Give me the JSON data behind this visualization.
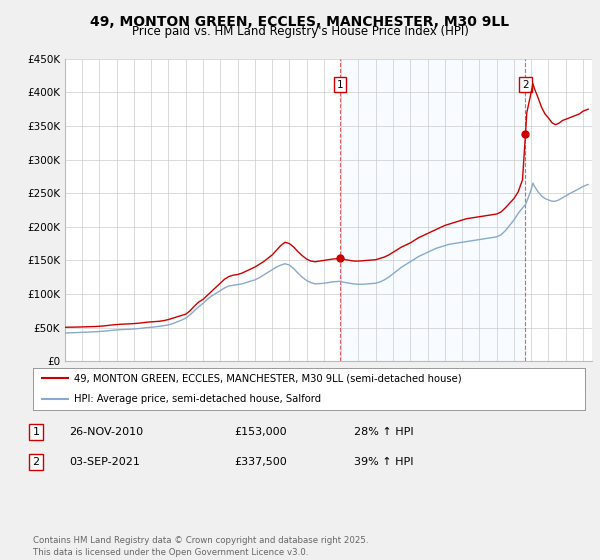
{
  "title": "49, MONTON GREEN, ECCLES, MANCHESTER, M30 9LL",
  "subtitle": "Price paid vs. HM Land Registry's House Price Index (HPI)",
  "title_fontsize": 10,
  "subtitle_fontsize": 8.5,
  "background_color": "#f0f0f0",
  "plot_bg_color": "#ffffff",
  "red_line_color": "#cc0000",
  "blue_line_color": "#88aacc",
  "ylim": [
    0,
    450000
  ],
  "yticks": [
    0,
    50000,
    100000,
    150000,
    200000,
    250000,
    300000,
    350000,
    400000,
    450000
  ],
  "ytick_labels": [
    "£0",
    "£50K",
    "£100K",
    "£150K",
    "£200K",
    "£250K",
    "£300K",
    "£350K",
    "£400K",
    "£450K"
  ],
  "xlim_start": 1995.0,
  "xlim_end": 2025.5,
  "marker1_x": 2010.92,
  "marker1_y": 153000,
  "marker2_x": 2021.67,
  "marker2_y": 337500,
  "legend_label_red": "49, MONTON GREEN, ECCLES, MANCHESTER, M30 9LL (semi-detached house)",
  "legend_label_blue": "HPI: Average price, semi-detached house, Salford",
  "table_row1": [
    "1",
    "26-NOV-2010",
    "£153,000",
    "28% ↑ HPI"
  ],
  "table_row2": [
    "2",
    "03-SEP-2021",
    "£337,500",
    "39% ↑ HPI"
  ],
  "footer_text": "Contains HM Land Registry data © Crown copyright and database right 2025.\nThis data is licensed under the Open Government Licence v3.0.",
  "hpi_red": [
    [
      1995.0,
      50500
    ],
    [
      1995.25,
      50600
    ],
    [
      1995.5,
      50700
    ],
    [
      1995.75,
      50800
    ],
    [
      1996.0,
      51000
    ],
    [
      1996.25,
      51200
    ],
    [
      1996.5,
      51400
    ],
    [
      1996.75,
      51600
    ],
    [
      1997.0,
      52000
    ],
    [
      1997.25,
      52500
    ],
    [
      1997.5,
      53200
    ],
    [
      1997.75,
      54000
    ],
    [
      1998.0,
      54500
    ],
    [
      1998.25,
      55000
    ],
    [
      1998.5,
      55300
    ],
    [
      1998.75,
      55600
    ],
    [
      1999.0,
      56000
    ],
    [
      1999.25,
      56500
    ],
    [
      1999.5,
      57200
    ],
    [
      1999.75,
      58000
    ],
    [
      2000.0,
      58500
    ],
    [
      2000.25,
      59000
    ],
    [
      2000.5,
      59500
    ],
    [
      2000.75,
      60500
    ],
    [
      2001.0,
      62000
    ],
    [
      2001.25,
      64000
    ],
    [
      2001.5,
      66000
    ],
    [
      2001.75,
      68000
    ],
    [
      2002.0,
      70000
    ],
    [
      2002.25,
      75000
    ],
    [
      2002.5,
      82000
    ],
    [
      2002.75,
      88000
    ],
    [
      2003.0,
      92000
    ],
    [
      2003.25,
      98000
    ],
    [
      2003.5,
      104000
    ],
    [
      2003.75,
      110000
    ],
    [
      2004.0,
      116000
    ],
    [
      2004.25,
      122000
    ],
    [
      2004.5,
      126000
    ],
    [
      2004.75,
      128000
    ],
    [
      2005.0,
      129000
    ],
    [
      2005.25,
      131000
    ],
    [
      2005.5,
      134000
    ],
    [
      2005.75,
      137000
    ],
    [
      2006.0,
      140000
    ],
    [
      2006.25,
      144000
    ],
    [
      2006.5,
      148000
    ],
    [
      2006.75,
      153000
    ],
    [
      2007.0,
      158000
    ],
    [
      2007.25,
      165000
    ],
    [
      2007.5,
      172000
    ],
    [
      2007.75,
      177000
    ],
    [
      2008.0,
      175000
    ],
    [
      2008.25,
      170000
    ],
    [
      2008.5,
      163000
    ],
    [
      2008.75,
      157000
    ],
    [
      2009.0,
      152000
    ],
    [
      2009.25,
      149000
    ],
    [
      2009.5,
      148000
    ],
    [
      2009.75,
      149000
    ],
    [
      2010.0,
      150000
    ],
    [
      2010.25,
      151000
    ],
    [
      2010.5,
      152000
    ],
    [
      2010.75,
      152500
    ],
    [
      2010.92,
      153000
    ],
    [
      2011.0,
      152500
    ],
    [
      2011.25,
      151000
    ],
    [
      2011.5,
      150000
    ],
    [
      2011.75,
      149000
    ],
    [
      2012.0,
      149000
    ],
    [
      2012.25,
      149500
    ],
    [
      2012.5,
      150000
    ],
    [
      2012.75,
      150500
    ],
    [
      2013.0,
      151000
    ],
    [
      2013.25,
      153000
    ],
    [
      2013.5,
      155000
    ],
    [
      2013.75,
      158000
    ],
    [
      2014.0,
      162000
    ],
    [
      2014.25,
      166000
    ],
    [
      2014.5,
      170000
    ],
    [
      2014.75,
      173000
    ],
    [
      2015.0,
      176000
    ],
    [
      2015.25,
      180000
    ],
    [
      2015.5,
      184000
    ],
    [
      2015.75,
      187000
    ],
    [
      2016.0,
      190000
    ],
    [
      2016.25,
      193000
    ],
    [
      2016.5,
      196000
    ],
    [
      2016.75,
      199000
    ],
    [
      2017.0,
      202000
    ],
    [
      2017.25,
      204000
    ],
    [
      2017.5,
      206000
    ],
    [
      2017.75,
      208000
    ],
    [
      2018.0,
      210000
    ],
    [
      2018.25,
      212000
    ],
    [
      2018.5,
      213000
    ],
    [
      2018.75,
      214000
    ],
    [
      2019.0,
      215000
    ],
    [
      2019.25,
      216000
    ],
    [
      2019.5,
      217000
    ],
    [
      2019.75,
      218000
    ],
    [
      2020.0,
      219000
    ],
    [
      2020.25,
      222000
    ],
    [
      2020.5,
      228000
    ],
    [
      2020.75,
      235000
    ],
    [
      2021.0,
      242000
    ],
    [
      2021.25,
      252000
    ],
    [
      2021.5,
      270000
    ],
    [
      2021.67,
      337500
    ],
    [
      2021.75,
      370000
    ],
    [
      2022.0,
      400000
    ],
    [
      2022.1,
      413000
    ],
    [
      2022.2,
      405000
    ],
    [
      2022.4,
      392000
    ],
    [
      2022.6,
      378000
    ],
    [
      2022.8,
      368000
    ],
    [
      2023.0,
      362000
    ],
    [
      2023.2,
      355000
    ],
    [
      2023.4,
      352000
    ],
    [
      2023.6,
      354000
    ],
    [
      2023.8,
      358000
    ],
    [
      2024.0,
      360000
    ],
    [
      2024.2,
      362000
    ],
    [
      2024.5,
      365000
    ],
    [
      2024.8,
      368000
    ],
    [
      2025.0,
      372000
    ],
    [
      2025.3,
      375000
    ]
  ],
  "hpi_blue": [
    [
      1995.0,
      42000
    ],
    [
      1995.25,
      42200
    ],
    [
      1995.5,
      42400
    ],
    [
      1995.75,
      42600
    ],
    [
      1996.0,
      43000
    ],
    [
      1996.25,
      43200
    ],
    [
      1996.5,
      43500
    ],
    [
      1996.75,
      43800
    ],
    [
      1997.0,
      44200
    ],
    [
      1997.25,
      44700
    ],
    [
      1997.5,
      45300
    ],
    [
      1997.75,
      46000
    ],
    [
      1998.0,
      46500
    ],
    [
      1998.25,
      47000
    ],
    [
      1998.5,
      47300
    ],
    [
      1998.75,
      47600
    ],
    [
      1999.0,
      48000
    ],
    [
      1999.25,
      48500
    ],
    [
      1999.5,
      49200
    ],
    [
      1999.75,
      50000
    ],
    [
      2000.0,
      50500
    ],
    [
      2000.25,
      51200
    ],
    [
      2000.5,
      52000
    ],
    [
      2000.75,
      53000
    ],
    [
      2001.0,
      54000
    ],
    [
      2001.25,
      56000
    ],
    [
      2001.5,
      58500
    ],
    [
      2001.75,
      61000
    ],
    [
      2002.0,
      64000
    ],
    [
      2002.25,
      69000
    ],
    [
      2002.5,
      75000
    ],
    [
      2002.75,
      81000
    ],
    [
      2003.0,
      86000
    ],
    [
      2003.25,
      92000
    ],
    [
      2003.5,
      97000
    ],
    [
      2003.75,
      101000
    ],
    [
      2004.0,
      105000
    ],
    [
      2004.25,
      109000
    ],
    [
      2004.5,
      112000
    ],
    [
      2004.75,
      113000
    ],
    [
      2005.0,
      114000
    ],
    [
      2005.25,
      115000
    ],
    [
      2005.5,
      117000
    ],
    [
      2005.75,
      119000
    ],
    [
      2006.0,
      121000
    ],
    [
      2006.25,
      124000
    ],
    [
      2006.5,
      128000
    ],
    [
      2006.75,
      132000
    ],
    [
      2007.0,
      136000
    ],
    [
      2007.25,
      140000
    ],
    [
      2007.5,
      143000
    ],
    [
      2007.75,
      145000
    ],
    [
      2008.0,
      143000
    ],
    [
      2008.25,
      138000
    ],
    [
      2008.5,
      131000
    ],
    [
      2008.75,
      125000
    ],
    [
      2009.0,
      120000
    ],
    [
      2009.25,
      117000
    ],
    [
      2009.5,
      115000
    ],
    [
      2009.75,
      115500
    ],
    [
      2010.0,
      116000
    ],
    [
      2010.25,
      117000
    ],
    [
      2010.5,
      118000
    ],
    [
      2010.75,
      118500
    ],
    [
      2010.92,
      119000
    ],
    [
      2011.0,
      118500
    ],
    [
      2011.25,
      117000
    ],
    [
      2011.5,
      116000
    ],
    [
      2011.75,
      115000
    ],
    [
      2012.0,
      114500
    ],
    [
      2012.25,
      114500
    ],
    [
      2012.5,
      115000
    ],
    [
      2012.75,
      115500
    ],
    [
      2013.0,
      116000
    ],
    [
      2013.25,
      118000
    ],
    [
      2013.5,
      121000
    ],
    [
      2013.75,
      125000
    ],
    [
      2014.0,
      130000
    ],
    [
      2014.25,
      135000
    ],
    [
      2014.5,
      140000
    ],
    [
      2014.75,
      144000
    ],
    [
      2015.0,
      148000
    ],
    [
      2015.25,
      152000
    ],
    [
      2015.5,
      156000
    ],
    [
      2015.75,
      159000
    ],
    [
      2016.0,
      162000
    ],
    [
      2016.25,
      165000
    ],
    [
      2016.5,
      168000
    ],
    [
      2016.75,
      170000
    ],
    [
      2017.0,
      172000
    ],
    [
      2017.25,
      174000
    ],
    [
      2017.5,
      175000
    ],
    [
      2017.75,
      176000
    ],
    [
      2018.0,
      177000
    ],
    [
      2018.25,
      178000
    ],
    [
      2018.5,
      179000
    ],
    [
      2018.75,
      180000
    ],
    [
      2019.0,
      181000
    ],
    [
      2019.25,
      182000
    ],
    [
      2019.5,
      183000
    ],
    [
      2019.75,
      184000
    ],
    [
      2020.0,
      185000
    ],
    [
      2020.25,
      188000
    ],
    [
      2020.5,
      194000
    ],
    [
      2020.75,
      202000
    ],
    [
      2021.0,
      210000
    ],
    [
      2021.25,
      220000
    ],
    [
      2021.5,
      228000
    ],
    [
      2021.67,
      233000
    ],
    [
      2021.75,
      238000
    ],
    [
      2022.0,
      255000
    ],
    [
      2022.1,
      265000
    ],
    [
      2022.2,
      260000
    ],
    [
      2022.4,
      252000
    ],
    [
      2022.6,
      246000
    ],
    [
      2022.8,
      242000
    ],
    [
      2023.0,
      240000
    ],
    [
      2023.2,
      238000
    ],
    [
      2023.4,
      238000
    ],
    [
      2023.6,
      240000
    ],
    [
      2023.8,
      243000
    ],
    [
      2024.0,
      246000
    ],
    [
      2024.2,
      249000
    ],
    [
      2024.5,
      253000
    ],
    [
      2024.8,
      257000
    ],
    [
      2025.0,
      260000
    ],
    [
      2025.3,
      263000
    ]
  ]
}
